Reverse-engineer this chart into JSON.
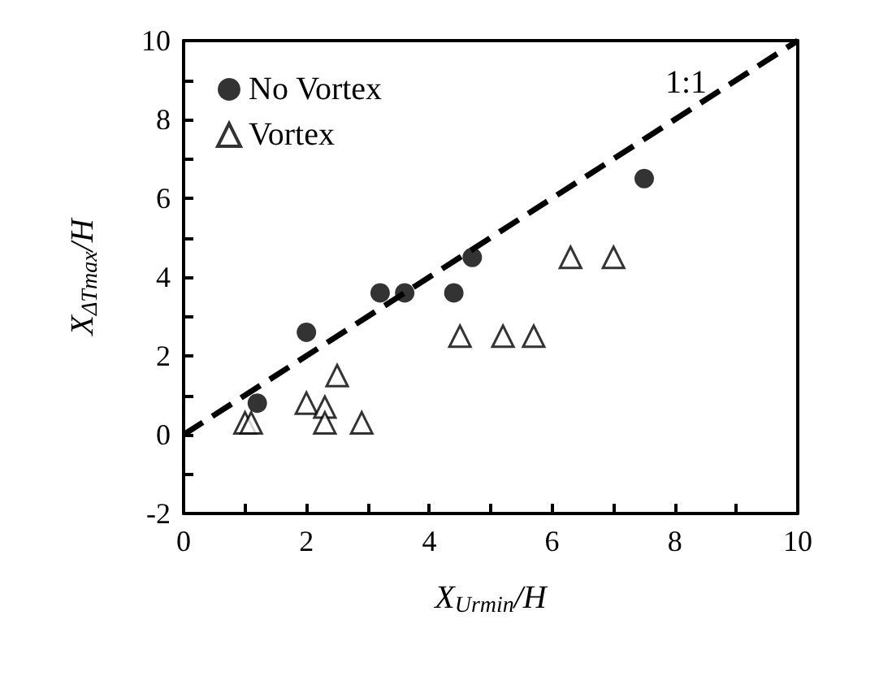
{
  "chart_data": {
    "type": "scatter",
    "xlabel": "X$_{Urmin}$/H",
    "ylabel": "X$_{ΔTmax}$/H",
    "xlim": [
      0,
      10
    ],
    "xticks": [
      0,
      {
        "value": 1,
        "label": null
      },
      2,
      {
        "value": 3,
        "label": null
      },
      4,
      {
        "value": 5,
        "label": null
      },
      6,
      {
        "value": 7,
        "label": null
      },
      8,
      {
        "value": 9,
        "label": null
      },
      10
    ],
    "ylim": [
      -2,
      10
    ],
    "yticks": [
      -2,
      {
        "value": -1,
        "label": null
      },
      0,
      {
        "value": 1,
        "label": null
      },
      2,
      {
        "value": 3,
        "label": null
      },
      4,
      {
        "value": 5,
        "label": null
      },
      6,
      {
        "value": 7,
        "label": null
      },
      8,
      {
        "value": 9,
        "label": null
      },
      10
    ],
    "grid": false,
    "legend": "top left",
    "series": [
      {
        "name": "No Vortex",
        "color": "#000000",
        "marker": "circle",
        "x": [
          1.2,
          2.0,
          3.2,
          3.6,
          4.4,
          4.7,
          7.5
        ],
        "values": [
          0.8,
          2.6,
          3.6,
          3.6,
          3.6,
          4.5,
          6.5
        ]
      },
      {
        "name": "Vortex",
        "color": "#000000",
        "marker": "triangle",
        "x": [
          1.0,
          1.1,
          2.0,
          2.3,
          2.3,
          2.5,
          2.9,
          4.5,
          5.2,
          5.7,
          6.3,
          7.0
        ],
        "values": [
          0.3,
          0.3,
          0.8,
          0.7,
          0.3,
          1.5,
          0.3,
          2.5,
          2.5,
          2.5,
          4.5,
          4.5
        ]
      },
      {
        "type": "line",
        "color": "#000000",
        "line_style": "dashed",
        "marker": "none",
        "x": [
          0,
          10
        ],
        "values": [
          0,
          10
        ]
      }
    ],
    "annotations": [
      "1:1"
    ]
  }
}
